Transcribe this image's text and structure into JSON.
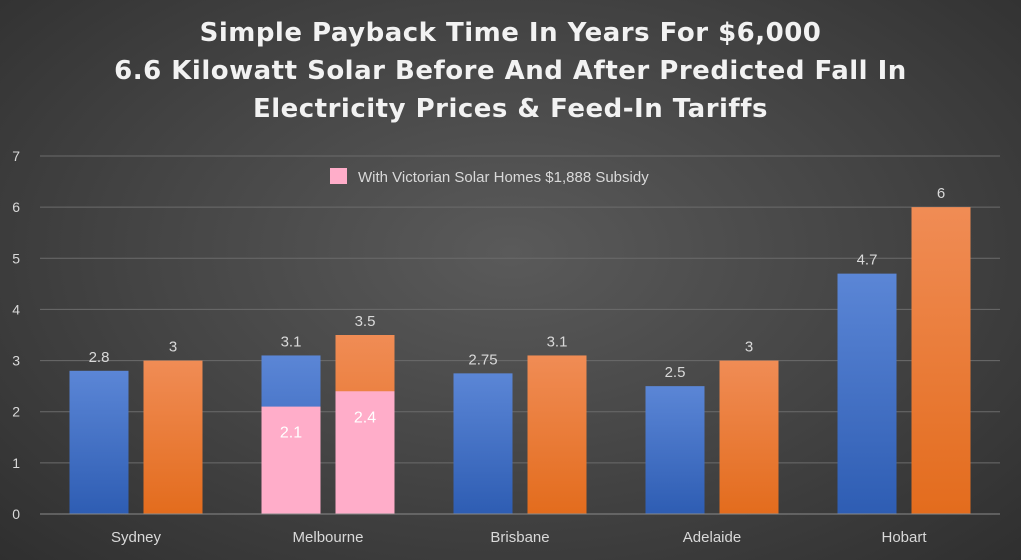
{
  "chart_data": {
    "type": "bar",
    "title_lines": [
      "Simple Payback Time In Years For $6,000",
      "6.6 Kilowatt Solar Before And After Predicted Fall In",
      "Electricity Prices & Feed-In Tariffs"
    ],
    "categories": [
      "Sydney",
      "Melbourne",
      "Brisbane",
      "Adelaide",
      "Hobart"
    ],
    "series": [
      {
        "values": [
          2.8,
          3.1,
          2.75,
          2.5,
          4.7
        ],
        "labels": [
          "2.8",
          "3.1",
          "2.75",
          "2.5",
          "4.7"
        ],
        "color": "#4472c4"
      },
      {
        "values": [
          3,
          3.5,
          3.1,
          3,
          6
        ],
        "labels": [
          "3",
          "3.5",
          "3.1",
          "3",
          "6"
        ],
        "color": "#ed7d31"
      }
    ],
    "overlay": {
      "name": "With Victorian Solar Homes $1,888 Subsidy",
      "category": "Melbourne",
      "values": [
        2.1,
        2.4
      ],
      "labels": [
        "2.1",
        "2.4"
      ],
      "color": "#ffadc9"
    },
    "legend_position": "top",
    "ylim": [
      0,
      7
    ],
    "yticks": [
      "0",
      "1",
      "2",
      "3",
      "4",
      "5",
      "6",
      "7"
    ],
    "grid": true,
    "colors": {
      "grid": "#6b6b6b",
      "axis_text": "#d9d9d9",
      "label_text": "#d9d9d9",
      "inbar_text": "#ffffff"
    }
  }
}
